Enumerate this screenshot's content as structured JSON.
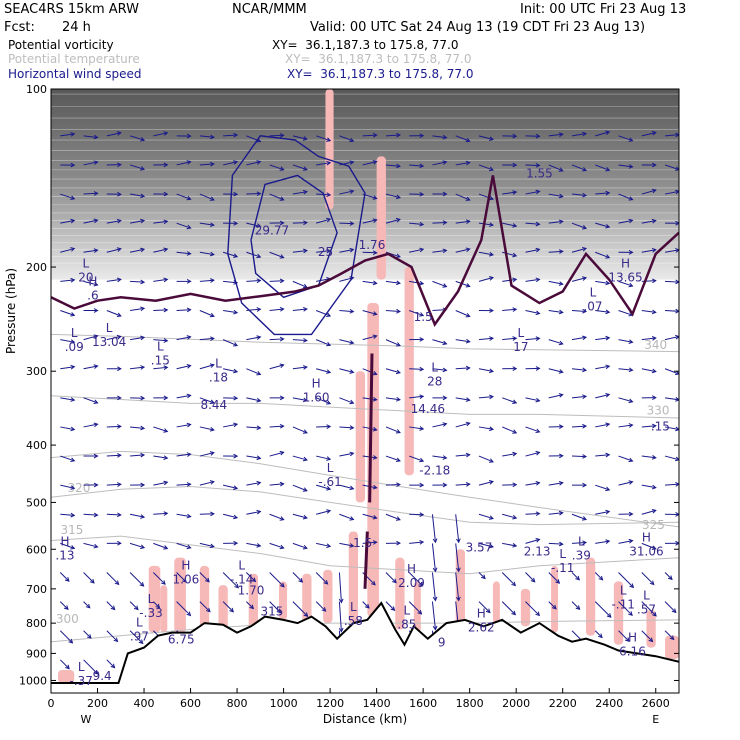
{
  "header": {
    "model": "SEAC4RS 15km ARW",
    "org": "NCAR/MMM",
    "init": "Init: 00 UTC Fri 23 Aug 13",
    "fcst_label": "Fcst:",
    "fcst_value": "24 h",
    "valid": "Valid: 00 UTC Sat 24 Aug 13 (19 CDT Fri 23 Aug 13)",
    "fields": [
      {
        "name": "Potential vorticity",
        "xy": "XY=  36.1,187.3 to 175.8, 77.0",
        "color": "#000000"
      },
      {
        "name": "Potential temperature",
        "xy": "XY=  36.1,187.3 to 175.8, 77.0",
        "color": "#bdbdbd"
      },
      {
        "name": "Horizontal wind speed",
        "xy": "XY=  36.1,187.3 to 175.8, 77.0",
        "color": "#1a1a8c"
      }
    ]
  },
  "chart_data": {
    "type": "cross-section",
    "xlabel": "Distance (km)",
    "ylabel": "Pressure (hPa)",
    "xlim": [
      0,
      2700
    ],
    "ylim": [
      1050,
      100
    ],
    "y_scale": "log",
    "x_ticks": [
      0,
      200,
      400,
      600,
      800,
      1000,
      1200,
      1400,
      1600,
      1800,
      2000,
      2200,
      2400,
      2600
    ],
    "y_ticks": [
      100,
      200,
      300,
      400,
      500,
      600,
      700,
      800,
      900,
      1000
    ],
    "left_end": "W",
    "right_end": "E",
    "colors": {
      "terrain": "#000000",
      "pv_fill": "#f7b8b8",
      "wind": "#1a1a8c",
      "theta": "#bdbdbd",
      "pv_contour": "#4a0a3a",
      "label": "#3a2a8a"
    },
    "terrain": [
      {
        "x": 0,
        "p": 1010
      },
      {
        "x": 290,
        "p": 1010
      },
      {
        "x": 330,
        "p": 900
      },
      {
        "x": 400,
        "p": 880
      },
      {
        "x": 460,
        "p": 840
      },
      {
        "x": 520,
        "p": 830
      },
      {
        "x": 600,
        "p": 830
      },
      {
        "x": 660,
        "p": 800
      },
      {
        "x": 740,
        "p": 805
      },
      {
        "x": 800,
        "p": 830
      },
      {
        "x": 860,
        "p": 810
      },
      {
        "x": 920,
        "p": 780
      },
      {
        "x": 1000,
        "p": 790
      },
      {
        "x": 1060,
        "p": 800
      },
      {
        "x": 1120,
        "p": 780
      },
      {
        "x": 1180,
        "p": 810
      },
      {
        "x": 1230,
        "p": 850
      },
      {
        "x": 1300,
        "p": 800
      },
      {
        "x": 1360,
        "p": 790
      },
      {
        "x": 1420,
        "p": 740
      },
      {
        "x": 1480,
        "p": 820
      },
      {
        "x": 1520,
        "p": 870
      },
      {
        "x": 1560,
        "p": 810
      },
      {
        "x": 1620,
        "p": 850
      },
      {
        "x": 1700,
        "p": 800
      },
      {
        "x": 1780,
        "p": 790
      },
      {
        "x": 1860,
        "p": 810
      },
      {
        "x": 1940,
        "p": 790
      },
      {
        "x": 2020,
        "p": 830
      },
      {
        "x": 2100,
        "p": 800
      },
      {
        "x": 2180,
        "p": 840
      },
      {
        "x": 2240,
        "p": 860
      },
      {
        "x": 2300,
        "p": 850
      },
      {
        "x": 2380,
        "p": 870
      },
      {
        "x": 2440,
        "p": 890
      },
      {
        "x": 2520,
        "p": 900
      },
      {
        "x": 2600,
        "p": 910
      },
      {
        "x": 2700,
        "p": 930
      }
    ],
    "isentropes": [
      {
        "label": "300",
        "x_label": 70,
        "p_label": 800,
        "p": [
          860,
          840,
          820,
          805,
          800,
          800,
          800,
          795,
          790
        ]
      },
      {
        "label": "315",
        "x_label": 90,
        "p_label": 565,
        "p": [
          580,
          570,
          590,
          610,
          640,
          650,
          660,
          640,
          620
        ]
      },
      {
        "label": "320",
        "x_label": 120,
        "p_label": 480,
        "p": [
          490,
          475,
          470,
          480,
          500,
          520,
          540,
          545,
          540
        ]
      },
      {
        "label": "325",
        "x_label": 2590,
        "p_label": 555,
        "p": [
          420,
          410,
          415,
          430,
          450,
          470,
          490,
          510,
          550
        ]
      },
      {
        "label": "330",
        "x_label": 2610,
        "p_label": 355,
        "p": [
          330,
          335,
          340,
          340,
          345,
          350,
          355,
          355,
          360
        ]
      },
      {
        "label": "340",
        "x_label": 2600,
        "p_label": 275,
        "p": [
          260,
          262,
          265,
          268,
          270,
          272,
          275,
          276,
          278
        ]
      }
    ],
    "isentrope_x": [
      0,
      300,
      600,
      900,
      1200,
      1500,
      1800,
      2100,
      2700
    ],
    "tropopause_pv": [
      {
        "x": 0,
        "p": 225
      },
      {
        "x": 100,
        "p": 235
      },
      {
        "x": 200,
        "p": 228
      },
      {
        "x": 300,
        "p": 225
      },
      {
        "x": 450,
        "p": 228
      },
      {
        "x": 600,
        "p": 222
      },
      {
        "x": 750,
        "p": 228
      },
      {
        "x": 900,
        "p": 224
      },
      {
        "x": 1050,
        "p": 220
      },
      {
        "x": 1150,
        "p": 215
      },
      {
        "x": 1250,
        "p": 205
      },
      {
        "x": 1350,
        "p": 195
      },
      {
        "x": 1450,
        "p": 190
      },
      {
        "x": 1550,
        "p": 200
      },
      {
        "x": 1650,
        "p": 250
      },
      {
        "x": 1750,
        "p": 220
      },
      {
        "x": 1850,
        "p": 180
      },
      {
        "x": 1900,
        "p": 140
      },
      {
        "x": 1980,
        "p": 215
      },
      {
        "x": 2100,
        "p": 230
      },
      {
        "x": 2200,
        "p": 220
      },
      {
        "x": 2300,
        "p": 190
      },
      {
        "x": 2400,
        "p": 210
      },
      {
        "x": 2500,
        "p": 240
      },
      {
        "x": 2600,
        "p": 190
      },
      {
        "x": 2700,
        "p": 175
      }
    ],
    "jet_contours": [
      [
        {
          "x": 760,
          "p": 190
        },
        {
          "x": 780,
          "p": 140
        },
        {
          "x": 900,
          "p": 120
        },
        {
          "x": 1050,
          "p": 122
        },
        {
          "x": 1150,
          "p": 130
        },
        {
          "x": 1280,
          "p": 135
        },
        {
          "x": 1350,
          "p": 150
        },
        {
          "x": 1290,
          "p": 210
        },
        {
          "x": 1120,
          "p": 260
        },
        {
          "x": 960,
          "p": 260
        },
        {
          "x": 820,
          "p": 230
        },
        {
          "x": 760,
          "p": 190
        }
      ],
      [
        {
          "x": 860,
          "p": 180
        },
        {
          "x": 920,
          "p": 145
        },
        {
          "x": 1060,
          "p": 140
        },
        {
          "x": 1170,
          "p": 150
        },
        {
          "x": 1230,
          "p": 175
        },
        {
          "x": 1150,
          "p": 215
        },
        {
          "x": 1000,
          "p": 225
        },
        {
          "x": 880,
          "p": 205
        },
        {
          "x": 860,
          "p": 180
        }
      ]
    ],
    "pv_fills": [
      {
        "x": 420,
        "w": 50,
        "top": 640,
        "bot": 830
      },
      {
        "x": 470,
        "w": 30,
        "top": 690,
        "bot": 830
      },
      {
        "x": 530,
        "w": 50,
        "top": 620,
        "bot": 830
      },
      {
        "x": 640,
        "w": 40,
        "top": 640,
        "bot": 830
      },
      {
        "x": 720,
        "w": 40,
        "top": 690,
        "bot": 820
      },
      {
        "x": 850,
        "w": 40,
        "top": 660,
        "bot": 820
      },
      {
        "x": 980,
        "w": 35,
        "top": 680,
        "bot": 790
      },
      {
        "x": 1080,
        "w": 40,
        "top": 660,
        "bot": 800
      },
      {
        "x": 1170,
        "w": 40,
        "top": 650,
        "bot": 800
      },
      {
        "x": 1280,
        "w": 40,
        "top": 560,
        "bot": 800
      },
      {
        "x": 1310,
        "w": 40,
        "top": 300,
        "bot": 500
      },
      {
        "x": 1360,
        "w": 50,
        "top": 230,
        "bot": 780
      },
      {
        "x": 1520,
        "w": 40,
        "top": 200,
        "bot": 450
      },
      {
        "x": 1480,
        "w": 40,
        "top": 620,
        "bot": 820
      },
      {
        "x": 1560,
        "w": 30,
        "top": 680,
        "bot": 830
      },
      {
        "x": 1740,
        "w": 40,
        "top": 600,
        "bot": 800
      },
      {
        "x": 1900,
        "w": 30,
        "top": 680,
        "bot": 800
      },
      {
        "x": 2020,
        "w": 40,
        "top": 700,
        "bot": 810
      },
      {
        "x": 2150,
        "w": 30,
        "top": 640,
        "bot": 830
      },
      {
        "x": 2300,
        "w": 40,
        "top": 620,
        "bot": 840
      },
      {
        "x": 2420,
        "w": 40,
        "top": 680,
        "bot": 870
      },
      {
        "x": 2560,
        "w": 40,
        "top": 760,
        "bot": 880
      },
      {
        "x": 2640,
        "w": 60,
        "top": 840,
        "bot": 920
      },
      {
        "x": 30,
        "w": 70,
        "top": 960,
        "bot": 1010
      },
      {
        "x": 1180,
        "w": 35,
        "top": 100,
        "bot": 160
      },
      {
        "x": 1400,
        "w": 40,
        "top": 130,
        "bot": 210
      }
    ],
    "annotations": [
      {
        "type": "H",
        "x": 180,
        "p": 225,
        "value": ".6"
      },
      {
        "type": "L",
        "x": 150,
        "p": 210,
        "value": "20"
      },
      {
        "type": "L",
        "x": 100,
        "p": 275,
        "value": ".09"
      },
      {
        "type": "L",
        "x": 250,
        "p": 270,
        "value": "13.04"
      },
      {
        "type": "L",
        "x": 470,
        "p": 290,
        "value": ".15"
      },
      {
        "type": "L",
        "x": 720,
        "p": 310,
        "value": ".18"
      },
      {
        "type": "",
        "x": 700,
        "p": 345,
        "value": "8.44"
      },
      {
        "type": "H",
        "x": 1140,
        "p": 335,
        "value": "1.60"
      },
      {
        "type": "L",
        "x": 1200,
        "p": 465,
        "value": "-.61"
      },
      {
        "type": "",
        "x": 950,
        "p": 175,
        "value": "29.77"
      },
      {
        "type": "",
        "x": 1180,
        "p": 190,
        "value": "25"
      },
      {
        "type": "",
        "x": 1380,
        "p": 185,
        "value": "1.76"
      },
      {
        "type": "",
        "x": 1600,
        "p": 245,
        "value": "1.5"
      },
      {
        "type": "L",
        "x": 1650,
        "p": 315,
        "value": "28"
      },
      {
        "type": "",
        "x": 1620,
        "p": 350,
        "value": "14.46"
      },
      {
        "type": "",
        "x": 1650,
        "p": 445,
        "value": "-2.18"
      },
      {
        "type": "",
        "x": 1340,
        "p": 590,
        "value": "1.5"
      },
      {
        "type": "",
        "x": 2100,
        "p": 140,
        "value": "1.55"
      },
      {
        "type": "L",
        "x": 2020,
        "p": 275,
        "value": "17"
      },
      {
        "type": "H",
        "x": 2470,
        "p": 210,
        "value": "13.65"
      },
      {
        "type": "L",
        "x": 2330,
        "p": 235,
        "value": ".07"
      },
      {
        "type": "",
        "x": 2620,
        "p": 375,
        "value": ".15"
      },
      {
        "type": "H",
        "x": 60,
        "p": 620,
        "value": ".13"
      },
      {
        "type": "H",
        "x": 580,
        "p": 680,
        "value": "1.06"
      },
      {
        "type": "L",
        "x": 820,
        "p": 680,
        "value": "-.14"
      },
      {
        "type": "",
        "x": 860,
        "p": 710,
        "value": "1.70"
      },
      {
        "type": "L",
        "x": 430,
        "p": 775,
        "value": "-.33"
      },
      {
        "type": "L",
        "x": 380,
        "p": 850,
        "value": ".97"
      },
      {
        "type": "",
        "x": 560,
        "p": 860,
        "value": "6.75"
      },
      {
        "type": "H",
        "x": 1550,
        "p": 690,
        "value": "2.09"
      },
      {
        "type": "L",
        "x": 1300,
        "p": 800,
        "value": ".58"
      },
      {
        "type": "L",
        "x": 1530,
        "p": 810,
        "value": ".85"
      },
      {
        "type": "",
        "x": 1680,
        "p": 870,
        "value": "9"
      },
      {
        "type": "H",
        "x": 1850,
        "p": 820,
        "value": "2.62"
      },
      {
        "type": "",
        "x": 1840,
        "p": 600,
        "value": "3.57"
      },
      {
        "type": "",
        "x": 2090,
        "p": 610,
        "value": "2.13"
      },
      {
        "type": "L",
        "x": 2280,
        "p": 620,
        "value": ".39"
      },
      {
        "type": "L",
        "x": 2200,
        "p": 650,
        "value": "-.11"
      },
      {
        "type": "H",
        "x": 2560,
        "p": 610,
        "value": "31.06"
      },
      {
        "type": "L",
        "x": 2460,
        "p": 750,
        "value": "-.11"
      },
      {
        "type": "L",
        "x": 2560,
        "p": 765,
        "value": ".57"
      },
      {
        "type": "H",
        "x": 2500,
        "p": 900,
        "value": "6.16"
      },
      {
        "type": "",
        "x": 220,
        "p": 990,
        "value": "9.4"
      },
      {
        "type": "L",
        "x": 130,
        "p": 1010,
        "value": "-.37"
      },
      {
        "type": "",
        "x": 950,
        "p": 770,
        "value": "315"
      }
    ]
  }
}
